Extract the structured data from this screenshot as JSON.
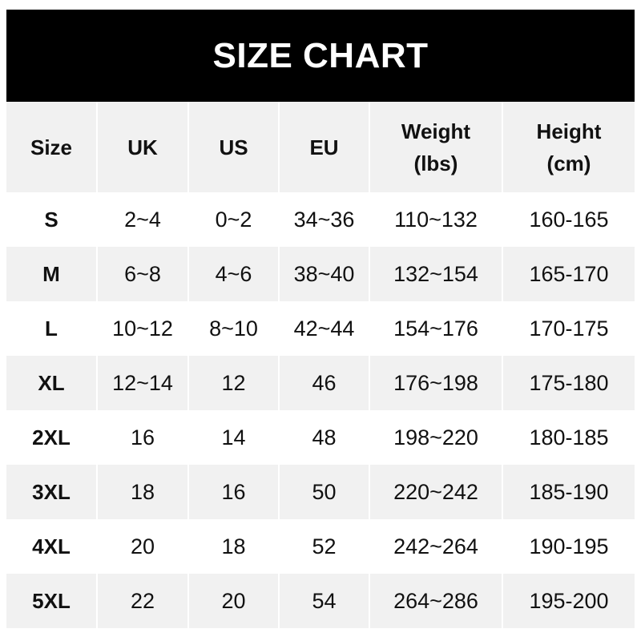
{
  "title": "SIZE CHART",
  "columns": [
    "Size",
    "UK",
    "US",
    "EU",
    "Weight\n(lbs)",
    "Height\n(cm)"
  ],
  "rows": [
    [
      "S",
      "2~4",
      "0~2",
      "34~36",
      "110~132",
      "160-165"
    ],
    [
      "M",
      "6~8",
      "4~6",
      "38~40",
      "132~154",
      "165-170"
    ],
    [
      "L",
      "10~12",
      "8~10",
      "42~44",
      "154~176",
      "170-175"
    ],
    [
      "XL",
      "12~14",
      "12",
      "46",
      "176~198",
      "175-180"
    ],
    [
      "2XL",
      "16",
      "14",
      "48",
      "198~220",
      "180-185"
    ],
    [
      "3XL",
      "18",
      "16",
      "50",
      "220~242",
      "185-190"
    ],
    [
      "4XL",
      "20",
      "18",
      "52",
      "242~264",
      "190-195"
    ],
    [
      "5XL",
      "22",
      "20",
      "54",
      "264~286",
      "195-200"
    ]
  ],
  "colors": {
    "header_bg": "#000000",
    "stripe": "#f1f1f1",
    "text": "#111111"
  }
}
